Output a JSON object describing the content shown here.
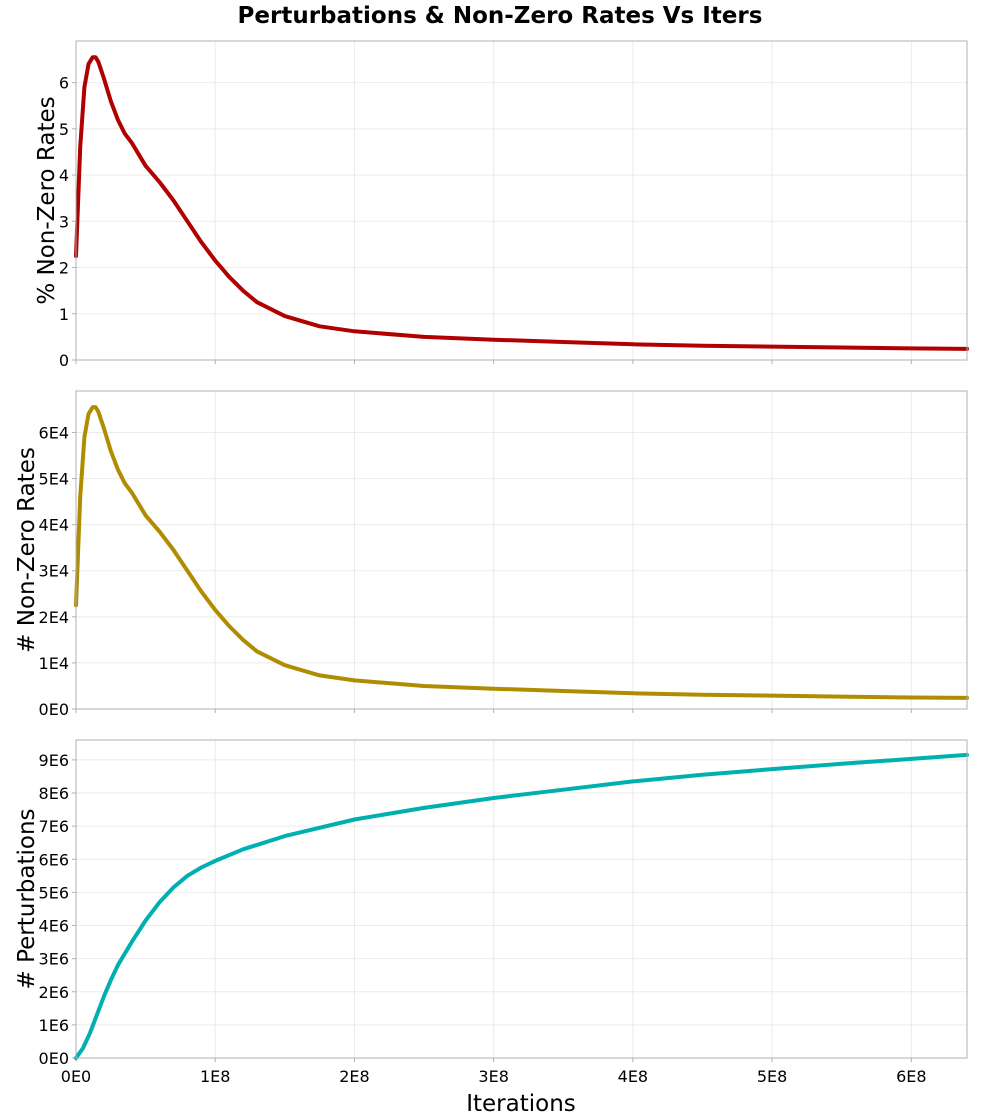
{
  "chart_data": {
    "title": "Perturbations & Non-Zero Rates Vs Iters",
    "xlabel": "Iterations",
    "xlim": [
      0,
      640000000
    ],
    "xticks": [
      0,
      100000000,
      200000000,
      300000000,
      400000000,
      500000000,
      600000000
    ],
    "xtick_labels": [
      "0E0",
      "1E8",
      "2E8",
      "3E8",
      "4E8",
      "5E8",
      "6E8"
    ],
    "panels": [
      {
        "id": "pct",
        "type": "line",
        "ylabel": "% Non-Zero Rates",
        "ylim": [
          0,
          6.9
        ],
        "yticks": [
          0,
          1,
          2,
          3,
          4,
          5,
          6
        ],
        "ytick_labels": [
          "0",
          "1",
          "2",
          "3",
          "4",
          "5",
          "6"
        ],
        "color": "#b00000",
        "x": [
          0,
          3000000,
          6000000,
          9000000,
          12000000,
          14000000,
          16000000,
          20000000,
          25000000,
          30000000,
          35000000,
          40000000,
          50000000,
          60000000,
          70000000,
          80000000,
          90000000,
          100000000,
          110000000,
          120000000,
          130000000,
          150000000,
          175000000,
          200000000,
          250000000,
          300000000,
          350000000,
          400000000,
          450000000,
          500000000,
          550000000,
          600000000,
          640000000
        ],
        "y": [
          2.25,
          4.6,
          5.9,
          6.4,
          6.55,
          6.55,
          6.45,
          6.1,
          5.6,
          5.2,
          4.9,
          4.7,
          4.2,
          3.85,
          3.45,
          3.0,
          2.55,
          2.15,
          1.8,
          1.5,
          1.25,
          0.95,
          0.73,
          0.62,
          0.5,
          0.44,
          0.39,
          0.34,
          0.31,
          0.29,
          0.27,
          0.25,
          0.24
        ]
      },
      {
        "id": "count",
        "type": "line",
        "ylabel": "# Non-Zero Rates",
        "ylim": [
          0,
          69000
        ],
        "yticks": [
          0,
          10000,
          20000,
          30000,
          40000,
          50000,
          60000
        ],
        "ytick_labels": [
          "0E0",
          "1E4",
          "2E4",
          "3E4",
          "4E4",
          "5E4",
          "6E4"
        ],
        "color": "#b08c00",
        "x": [
          0,
          3000000,
          6000000,
          9000000,
          12000000,
          14000000,
          16000000,
          20000000,
          25000000,
          30000000,
          35000000,
          40000000,
          50000000,
          60000000,
          70000000,
          80000000,
          90000000,
          100000000,
          110000000,
          120000000,
          130000000,
          150000000,
          175000000,
          200000000,
          250000000,
          300000000,
          350000000,
          400000000,
          450000000,
          500000000,
          550000000,
          600000000,
          640000000
        ],
        "y": [
          22500,
          46000,
          59000,
          64000,
          65500,
          65500,
          64500,
          61000,
          56000,
          52000,
          49000,
          47000,
          42000,
          38500,
          34500,
          30000,
          25500,
          21500,
          18000,
          15000,
          12500,
          9500,
          7300,
          6200,
          5000,
          4400,
          3900,
          3400,
          3100,
          2900,
          2700,
          2500,
          2400
        ]
      },
      {
        "id": "perturb",
        "type": "line",
        "ylabel": "# Perturbations",
        "ylim": [
          0,
          9600000
        ],
        "yticks": [
          0,
          1000000,
          2000000,
          3000000,
          4000000,
          5000000,
          6000000,
          7000000,
          8000000,
          9000000
        ],
        "ytick_labels": [
          "0E0",
          "1E6",
          "2E6",
          "3E6",
          "4E6",
          "5E6",
          "6E6",
          "7E6",
          "8E6",
          "9E6"
        ],
        "color": "#00b0b0",
        "x": [
          0,
          5000000,
          10000000,
          15000000,
          20000000,
          25000000,
          30000000,
          40000000,
          50000000,
          60000000,
          70000000,
          80000000,
          90000000,
          100000000,
          120000000,
          150000000,
          200000000,
          250000000,
          300000000,
          350000000,
          400000000,
          450000000,
          500000000,
          550000000,
          600000000,
          640000000
        ],
        "y": [
          0,
          300000,
          750000,
          1300000,
          1850000,
          2350000,
          2800000,
          3500000,
          4150000,
          4700000,
          5150000,
          5500000,
          5750000,
          5950000,
          6300000,
          6700000,
          7200000,
          7550000,
          7850000,
          8100000,
          8350000,
          8550000,
          8720000,
          8880000,
          9030000,
          9150000
        ]
      }
    ]
  }
}
